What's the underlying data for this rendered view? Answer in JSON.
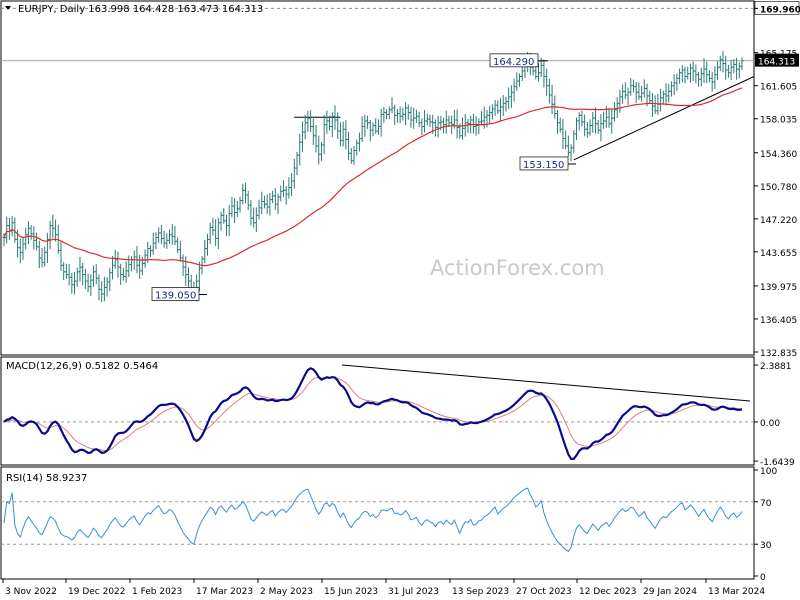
{
  "chart_data": [
    {
      "type": "line",
      "panel": "price",
      "header": {
        "symbol_line": "EURJPY, Daily  163.998 164.428 163.473 164.313"
      },
      "watermark": "ActionForex.com",
      "ylim": [
        132.835,
        170.0
      ],
      "y_ticks": [
        "169.960",
        "165.175",
        "161.605",
        "158.035",
        "154.360",
        "150.780",
        "147.220",
        "143.655",
        "139.975",
        "136.405",
        "132.835"
      ],
      "last_price_label": "164.313",
      "x_labels": [
        "3 Nov 2022",
        "19 Dec 2022",
        "1 Feb 2023",
        "17 Mar 2023",
        "2 May 2023",
        "15 Jun 2023",
        "31 Jul 2023",
        "13 Sep 2023",
        "27 Oct 2023",
        "12 Dec 2023",
        "29 Jan 2024",
        "13 Mar 2024"
      ],
      "closes": [
        145.2,
        146.5,
        145.9,
        146.8,
        145.0,
        144.1,
        143.6,
        144.5,
        145.5,
        146.2,
        145.6,
        144.9,
        144.2,
        143.0,
        142.5,
        143.6,
        145.0,
        146.5,
        146.2,
        145.5,
        143.8,
        142.2,
        141.5,
        141.2,
        140.9,
        140.1,
        140.5,
        141.5,
        142.0,
        141.2,
        140.5,
        139.9,
        140.6,
        141.5,
        140.8,
        139.6,
        139.1,
        139.8,
        140.4,
        141.4,
        142.2,
        142.8,
        142.0,
        141.2,
        141.0,
        141.6,
        142.3,
        142.8,
        143.1,
        142.2,
        141.6,
        142.4,
        143.3,
        144.0,
        143.8,
        144.6,
        145.2,
        145.7,
        145.1,
        144.6,
        144.9,
        145.5,
        145.3,
        144.8,
        143.9,
        143.0,
        142.0,
        141.2,
        140.5,
        139.6,
        139.1,
        140.5,
        141.9,
        142.9,
        144.0,
        145.0,
        146.3,
        146.0,
        145.1,
        146.8,
        147.6,
        147.0,
        146.5,
        147.8,
        148.6,
        147.9,
        148.3,
        149.2,
        150.3,
        149.8,
        148.7,
        147.3,
        146.8,
        147.6,
        148.4,
        149.1,
        148.8,
        148.5,
        149.3,
        149.7,
        148.8,
        149.6,
        150.2,
        150.3,
        149.9,
        150.6,
        151.3,
        152.7,
        154.1,
        155.5,
        156.6,
        157.6,
        158.1,
        157.2,
        156.2,
        155.1,
        154.2,
        155.2,
        157.4,
        157.8,
        157.2,
        158.3,
        157.9,
        156.7,
        155.7,
        156.9,
        155.8,
        154.3,
        153.5,
        154.6,
        155.4,
        155.9,
        157.2,
        157.8,
        157.6,
        156.8,
        157.3,
        156.7,
        157.2,
        158.5,
        158.7,
        158.5,
        159.0,
        159.2,
        158.4,
        158.6,
        158.3,
        158.5,
        159.2,
        158.7,
        157.9,
        158.1,
        158.3,
        157.6,
        157.2,
        157.8,
        158.0,
        157.7,
        157.6,
        157.1,
        157.6,
        157.7,
        157.4,
        157.9,
        157.6,
        157.4,
        157.9,
        157.1,
        156.2,
        157.0,
        157.6,
        157.5,
        157.9,
        157.2,
        157.3,
        157.7,
        157.8,
        158.2,
        158.4,
        158.7,
        159.1,
        159.5,
        158.9,
        159.3,
        159.7,
        159.9,
        160.4,
        160.9,
        161.5,
        162.1,
        162.6,
        163.2,
        163.8,
        164.1,
        163.6,
        163.2,
        162.6,
        163.0,
        163.8,
        162.6,
        161.6,
        160.6,
        159.6,
        158.6,
        157.6,
        156.9,
        155.9,
        155.1,
        154.4,
        154.9,
        156.4,
        157.8,
        158.4,
        157.7,
        156.9,
        156.5,
        157.3,
        158.1,
        157.5,
        156.8,
        157.5,
        157.8,
        158.2,
        157.5,
        158.1,
        159.0,
        159.7,
        160.4,
        161.0,
        160.6,
        160.9,
        161.6,
        161.5,
        160.9,
        160.4,
        160.8,
        161.3,
        160.5,
        160.0,
        159.4,
        158.9,
        159.6,
        160.3,
        160.7,
        160.5,
        161.0,
        161.6,
        161.9,
        162.4,
        163.0,
        163.3,
        162.6,
        162.9,
        163.5,
        163.2,
        162.8,
        162.3,
        162.9,
        163.4,
        162.8,
        162.4,
        162.0,
        162.8,
        163.6,
        164.4,
        164.0,
        163.3,
        163.0,
        163.6,
        163.9,
        163.4,
        163.7,
        164.3
      ],
      "series": [
        {
          "indicator": "moving-average",
          "color": "#dd2b2b"
        },
        {
          "indicator": "ohlc-bars",
          "color": "#2a7a76"
        }
      ],
      "annotations": [
        {
          "text": "164.290",
          "value": 164.29
        },
        {
          "text": "153.150",
          "value": 153.15
        },
        {
          "text": "139.050",
          "value": 139.05
        }
      ]
    },
    {
      "type": "line",
      "panel": "macd",
      "header": "MACD(12,26,9) 0.5182 0.5464",
      "ylim": [
        -1.64,
        2.39
      ],
      "y_ticks": [
        "2.3881",
        "0.00",
        "-1.6439"
      ],
      "series": [
        {
          "indicator": "macd",
          "color": "#0a0a8c"
        },
        {
          "indicator": "signal",
          "color": "#d08585"
        }
      ]
    },
    {
      "type": "line",
      "panel": "rsi",
      "header": "RSI(14) 58.9237",
      "ylim": [
        0,
        100
      ],
      "y_ticks": [
        "100",
        "70",
        "30",
        "0"
      ],
      "levels": [
        70,
        30
      ],
      "series": [
        {
          "indicator": "rsi",
          "color": "#3b8ed8"
        }
      ]
    }
  ]
}
